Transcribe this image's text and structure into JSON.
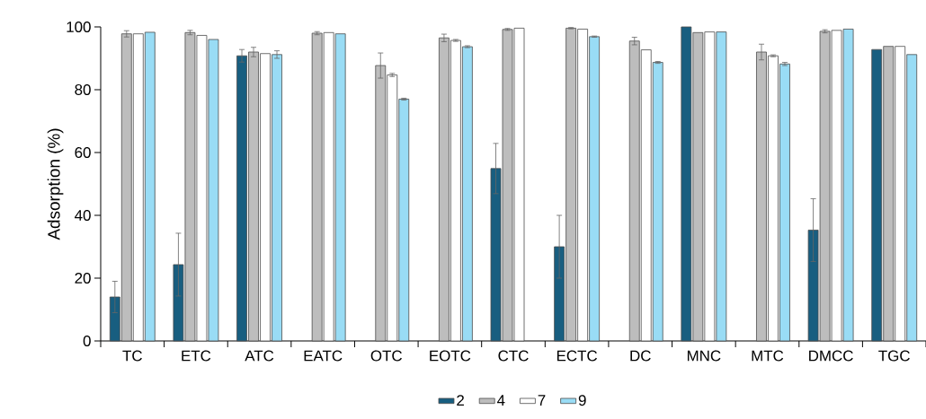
{
  "chart_data": {
    "type": "bar",
    "ylabel": "Adsorption (%)",
    "categories": [
      "TC",
      "ETC",
      "ATC",
      "EATC",
      "OTC",
      "EOTC",
      "CTC",
      "ECTC",
      "DC",
      "MNC",
      "MTC",
      "DMCC",
      "TGC"
    ],
    "series": [
      {
        "name": "2",
        "color": "#185e80",
        "values": [
          14,
          24.3,
          90.8,
          null,
          null,
          null,
          54.9,
          30,
          null,
          100,
          null,
          35.3,
          92.8
        ],
        "errors": [
          5,
          10,
          2,
          null,
          null,
          null,
          8,
          10,
          null,
          null,
          null,
          10,
          null
        ]
      },
      {
        "name": "4",
        "color": "#bdbdbd",
        "values": [
          97.8,
          98.2,
          92,
          98,
          87.7,
          96.5,
          99.2,
          99.6,
          95.5,
          98.2,
          92,
          98.6,
          93.8
        ],
        "errors": [
          1,
          0.7,
          1.5,
          0.5,
          4,
          1.2,
          0.3,
          0.2,
          1.2,
          null,
          2.5,
          0.5,
          null
        ]
      },
      {
        "name": "7",
        "color": "#ffffff",
        "values": [
          97.8,
          97.3,
          91.5,
          98.2,
          84.7,
          95.7,
          99.6,
          99.3,
          92.7,
          98.4,
          90.8,
          98.9,
          93.8
        ],
        "errors": [
          null,
          null,
          null,
          null,
          0.5,
          0.3,
          null,
          null,
          null,
          null,
          0.3,
          null,
          null
        ]
      },
      {
        "name": "9",
        "color": "#99dcf5",
        "values": [
          98.3,
          96,
          91.2,
          97.8,
          77,
          93.7,
          null,
          96.9,
          88.7,
          98.4,
          88.2,
          99.3,
          91.2
        ],
        "errors": [
          null,
          null,
          1.2,
          null,
          0.3,
          0.3,
          null,
          0.2,
          0.3,
          null,
          0.5,
          null,
          null
        ]
      }
    ],
    "ylim": [
      0,
      100
    ],
    "yticks": [
      0,
      20,
      40,
      60,
      80,
      100
    ],
    "grid": false,
    "legend": "bottom"
  }
}
